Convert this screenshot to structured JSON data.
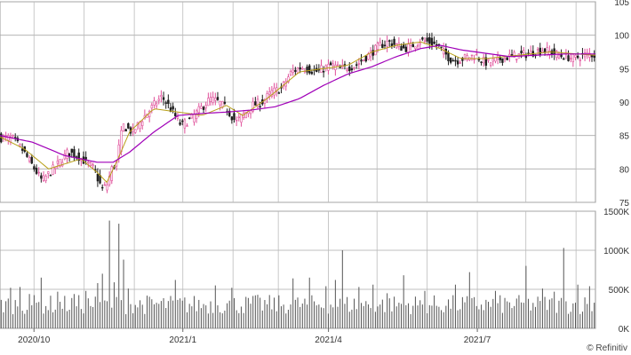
{
  "chart_data": [
    {
      "type": "candlestick",
      "panel": "price",
      "ylim": [
        75,
        105
      ],
      "y_ticks": [
        "105",
        "100",
        "95",
        "90",
        "85",
        "80",
        "75"
      ],
      "y_tick_values": [
        105,
        100,
        95,
        90,
        85,
        80,
        75
      ],
      "x_ticks": [
        "2020/10",
        "2021/1",
        "2021/4",
        "2021/7"
      ],
      "x_tick_days": [
        21,
        113,
        203,
        295
      ],
      "days_total": 368,
      "grid": true,
      "price_anchors": [
        [
          0,
          84.7
        ],
        [
          8,
          84.5
        ],
        [
          14,
          82.8
        ],
        [
          20,
          80.5
        ],
        [
          26,
          78.2
        ],
        [
          31,
          79.5
        ],
        [
          36,
          80.8
        ],
        [
          42,
          82.5
        ],
        [
          48,
          82.0
        ],
        [
          53,
          81.0
        ],
        [
          58,
          80.0
        ],
        [
          63,
          77.0
        ],
        [
          66,
          77.5
        ],
        [
          69,
          80.0
        ],
        [
          72,
          81.0
        ],
        [
          74,
          84.0
        ],
        [
          76,
          86.5
        ],
        [
          82,
          85.5
        ],
        [
          88,
          87.5
        ],
        [
          95,
          89.5
        ],
        [
          100,
          90.8
        ],
        [
          104,
          89.5
        ],
        [
          108,
          88.0
        ],
        [
          112,
          86.5
        ],
        [
          118,
          87.5
        ],
        [
          124,
          89.0
        ],
        [
          130,
          90.5
        ],
        [
          135,
          90.0
        ],
        [
          140,
          89.0
        ],
        [
          146,
          87.0
        ],
        [
          150,
          88.0
        ],
        [
          156,
          89.5
        ],
        [
          162,
          90.0
        ],
        [
          168,
          91.5
        ],
        [
          174,
          92.0
        ],
        [
          180,
          94.5
        ],
        [
          186,
          95.2
        ],
        [
          190,
          95.0
        ],
        [
          195,
          94.5
        ],
        [
          200,
          95.0
        ],
        [
          205,
          95.5
        ],
        [
          210,
          95.0
        ],
        [
          215,
          95.2
        ],
        [
          220,
          95.5
        ],
        [
          225,
          96.5
        ],
        [
          230,
          97.5
        ],
        [
          235,
          98.5
        ],
        [
          240,
          99.0
        ],
        [
          245,
          98.5
        ],
        [
          250,
          98.0
        ],
        [
          255,
          98.5
        ],
        [
          260,
          99.2
        ],
        [
          265,
          99.0
        ],
        [
          270,
          98.5
        ],
        [
          274,
          97.5
        ],
        [
          278,
          96.5
        ],
        [
          282,
          96.2
        ],
        [
          286,
          96.5
        ],
        [
          290,
          96.8
        ],
        [
          294,
          97.0
        ],
        [
          298,
          96.2
        ],
        [
          302,
          95.8
        ],
        [
          306,
          96.2
        ],
        [
          310,
          96.5
        ],
        [
          315,
          96.8
        ],
        [
          320,
          97.0
        ],
        [
          325,
          97.2
        ],
        [
          330,
          97.5
        ],
        [
          335,
          97.8
        ],
        [
          340,
          97.5
        ],
        [
          345,
          97.0
        ],
        [
          350,
          96.8
        ],
        [
          355,
          96.5
        ],
        [
          360,
          97.0
        ],
        [
          365,
          97.2
        ],
        [
          368,
          97.0
        ]
      ],
      "ma_short_anchors": [
        [
          0,
          84.8
        ],
        [
          15,
          83.0
        ],
        [
          30,
          80.0
        ],
        [
          50,
          81.5
        ],
        [
          60,
          79.5
        ],
        [
          66,
          78.0
        ],
        [
          72,
          81.0
        ],
        [
          80,
          85.5
        ],
        [
          95,
          89.0
        ],
        [
          110,
          88.5
        ],
        [
          125,
          88.0
        ],
        [
          140,
          89.5
        ],
        [
          150,
          88.0
        ],
        [
          165,
          90.5
        ],
        [
          185,
          94.5
        ],
        [
          200,
          95.0
        ],
        [
          215,
          95.5
        ],
        [
          230,
          97.5
        ],
        [
          245,
          98.5
        ],
        [
          260,
          99.0
        ],
        [
          272,
          98.0
        ],
        [
          285,
          96.5
        ],
        [
          300,
          96.5
        ],
        [
          320,
          97.0
        ],
        [
          340,
          97.5
        ],
        [
          368,
          97.0
        ]
      ],
      "ma_long_anchors": [
        [
          0,
          85.0
        ],
        [
          20,
          84.0
        ],
        [
          40,
          82.0
        ],
        [
          60,
          81.0
        ],
        [
          70,
          81.0
        ],
        [
          80,
          82.5
        ],
        [
          95,
          85.5
        ],
        [
          110,
          88.0
        ],
        [
          125,
          88.3
        ],
        [
          140,
          88.5
        ],
        [
          155,
          88.8
        ],
        [
          170,
          89.3
        ],
        [
          185,
          90.5
        ],
        [
          200,
          92.5
        ],
        [
          215,
          94.2
        ],
        [
          230,
          95.3
        ],
        [
          245,
          96.8
        ],
        [
          260,
          98.0
        ],
        [
          272,
          98.5
        ],
        [
          285,
          97.8
        ],
        [
          300,
          97.3
        ],
        [
          315,
          96.8
        ],
        [
          330,
          97.0
        ],
        [
          350,
          97.2
        ],
        [
          368,
          97.2
        ]
      ],
      "up_color": "#e0509a",
      "down_color": "#1f1f1f",
      "ma_short_color": "#b8a018",
      "ma_long_color": "#a000b8"
    },
    {
      "type": "bar",
      "panel": "volume",
      "ylim": [
        0,
        1500000
      ],
      "y_ticks": [
        "1500K",
        "1000K",
        "500K",
        "0K"
      ],
      "y_tick_values": [
        1500000,
        1000000,
        500000,
        0
      ],
      "base_volume": 330000,
      "spikes": [
        [
          6,
          520000
        ],
        [
          12,
          530000
        ],
        [
          17,
          440000
        ],
        [
          24,
          650000
        ],
        [
          35,
          470000
        ],
        [
          45,
          440000
        ],
        [
          52,
          480000
        ],
        [
          60,
          580000
        ],
        [
          63,
          700000
        ],
        [
          67,
          1380000
        ],
        [
          70,
          590000
        ],
        [
          73,
          1340000
        ],
        [
          75,
          880000
        ],
        [
          79,
          510000
        ],
        [
          107,
          620000
        ],
        [
          132,
          550000
        ],
        [
          142,
          520000
        ],
        [
          159,
          430000
        ],
        [
          181,
          640000
        ],
        [
          191,
          650000
        ],
        [
          201,
          540000
        ],
        [
          206,
          620000
        ],
        [
          211,
          1000000
        ],
        [
          221,
          530000
        ],
        [
          230,
          560000
        ],
        [
          239,
          450000
        ],
        [
          248,
          680000
        ],
        [
          262,
          480000
        ],
        [
          280,
          560000
        ],
        [
          289,
          720000
        ],
        [
          305,
          480000
        ],
        [
          324,
          800000
        ],
        [
          334,
          510000
        ],
        [
          342,
          470000
        ],
        [
          348,
          1030000
        ],
        [
          357,
          560000
        ],
        [
          364,
          540000
        ]
      ],
      "bar_color": "#555555"
    }
  ],
  "axis": {
    "x_labels": [
      "2020/10",
      "2021/1",
      "2021/4",
      "2021/7"
    ]
  },
  "credit": "© Refinitiv"
}
